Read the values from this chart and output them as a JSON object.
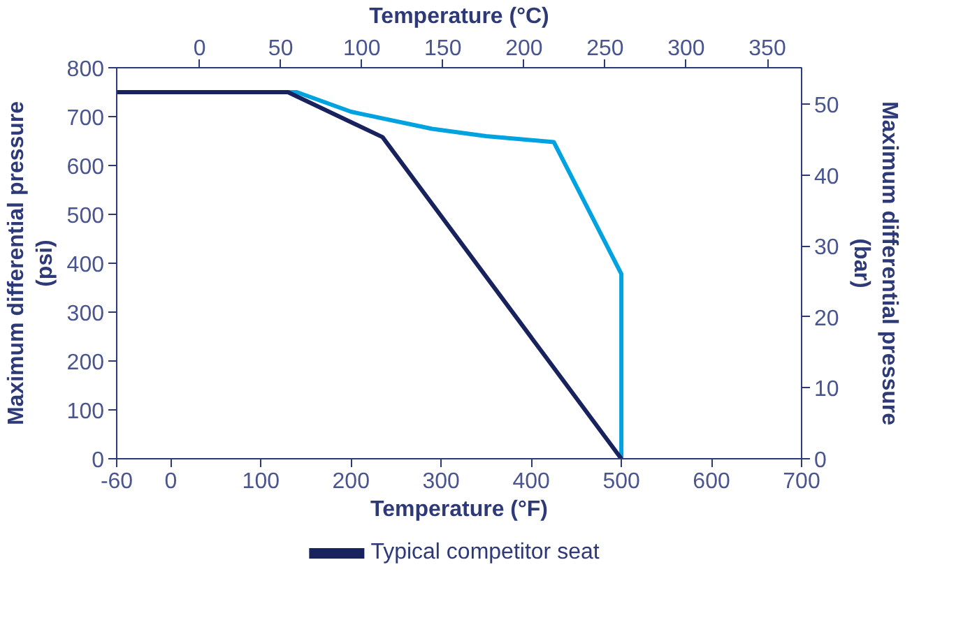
{
  "chart_data": {
    "type": "line",
    "xlabel": "Temperature (°F)",
    "ylabel": "Maximum differential pressure (psi)",
    "y2label": "Maximum differential pressure (bar)",
    "x2label": "Temperature (°C)",
    "series": [
      {
        "color": "#00a3e0",
        "x": [
          -60,
          140,
          200,
          290,
          350,
          425,
          500,
          500
        ],
        "values": [
          750,
          750,
          710,
          675,
          660,
          648,
          378,
          0
        ]
      },
      {
        "name": "Typical competitor seat",
        "color": "#18225c",
        "x": [
          -60,
          130,
          235,
          500
        ],
        "values": [
          750,
          750,
          658,
          0
        ]
      }
    ],
    "xlim": [
      -60,
      700
    ],
    "xticks": [
      -60,
      0,
      100,
      200,
      300,
      400,
      500,
      600,
      700
    ],
    "ylim": [
      0,
      800
    ],
    "yticks": [
      0,
      100,
      200,
      300,
      400,
      500,
      600,
      700,
      800
    ],
    "x2lim": [
      -51.1,
      371.1
    ],
    "x2ticks": [
      0,
      50,
      100,
      150,
      200,
      250,
      300,
      350
    ],
    "y2lim": [
      0,
      55.16
    ],
    "y2ticks": [
      0,
      10,
      20,
      30,
      40,
      50
    ],
    "grid": false,
    "legend": "bottom",
    "marker": "none",
    "line_style": "solid"
  }
}
